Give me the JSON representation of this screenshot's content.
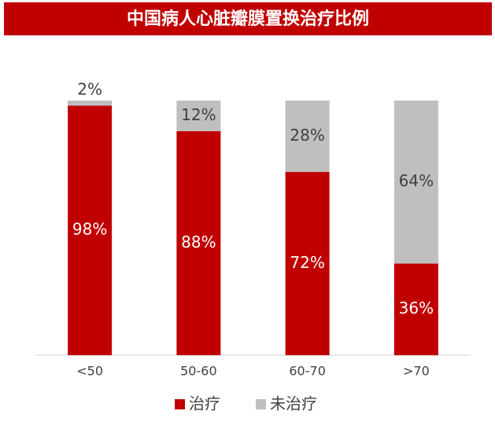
{
  "chart_data": {
    "type": "stacked_bar",
    "title": "中国病人心脏瓣膜置换治疗比例",
    "categories": [
      "<50",
      "50-60",
      "60-70",
      ">70"
    ],
    "series": [
      {
        "name": "治疗",
        "color": "#c00000",
        "values": [
          98,
          88,
          72,
          36
        ],
        "value_labels": [
          "98%",
          "88%",
          "72%",
          "36%"
        ]
      },
      {
        "name": "未治疗",
        "color": "#bfbfbf",
        "values": [
          2,
          12,
          28,
          64
        ],
        "value_labels": [
          "2%",
          "12%",
          "28%",
          "64%"
        ]
      }
    ],
    "legend": "bottom"
  }
}
